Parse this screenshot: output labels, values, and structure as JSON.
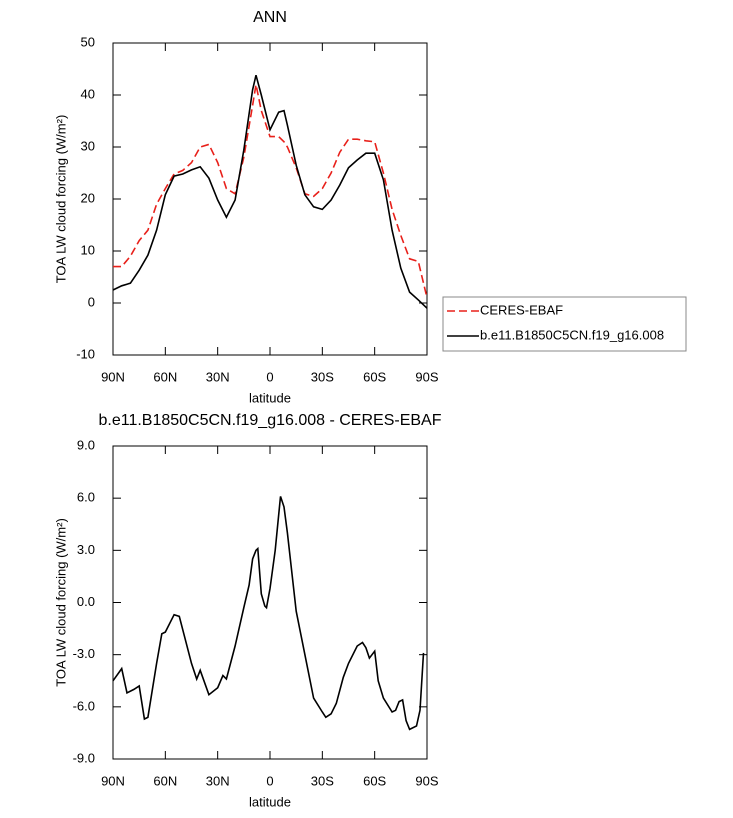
{
  "chart_data": [
    {
      "type": "line",
      "title": "ANN",
      "xlabel": "latitude",
      "ylabel": "TOA LW cloud forcing (W/m²)",
      "x": [
        90,
        85,
        80,
        75,
        70,
        65,
        60,
        55,
        50,
        45,
        40,
        35,
        30,
        25,
        20,
        15,
        10,
        8,
        5,
        0,
        -5,
        -8,
        -10,
        -15,
        -20,
        -25,
        -30,
        -35,
        -40,
        -45,
        -50,
        -55,
        -60,
        -65,
        -70,
        -75,
        -80,
        -85,
        -90
      ],
      "series": [
        {
          "name": "CERES-EBAF",
          "color": "#e8201a",
          "dashed": true,
          "values": [
            7,
            7,
            9,
            12,
            14,
            19,
            22,
            24.8,
            25.5,
            27,
            30,
            30.5,
            27,
            22,
            21,
            28,
            38,
            42,
            37,
            32,
            32,
            31,
            30,
            26,
            21,
            20.5,
            22,
            25,
            29,
            31.5,
            31.5,
            31.2,
            31,
            25,
            18,
            13,
            8.5,
            8,
            1
          ]
        },
        {
          "name": "b.e11.B1850C5CN.f19_g16.008",
          "color": "#000000",
          "dashed": false,
          "values": [
            2.5,
            3.3,
            3.8,
            6.3,
            9.2,
            14,
            20.8,
            24.4,
            24.8,
            25.6,
            26.2,
            24,
            19.8,
            16.5,
            19.8,
            29.4,
            41,
            43.8,
            40,
            33.3,
            36.7,
            37,
            34.2,
            26.5,
            20.8,
            18.5,
            18,
            19.8,
            22.7,
            26,
            27.5,
            28.8,
            28.8,
            23.7,
            14,
            6.7,
            2.1,
            0.6,
            -1
          ]
        }
      ],
      "xlim": [
        90,
        -90
      ],
      "xticks": [
        {
          "value": 90,
          "label": "90N"
        },
        {
          "value": 60,
          "label": "60N"
        },
        {
          "value": 30,
          "label": "30N"
        },
        0,
        {
          "value": -30,
          "label": "30S"
        },
        {
          "value": -60,
          "label": "60S"
        },
        {
          "value": -90,
          "label": "90S"
        }
      ],
      "ylim": [
        -10,
        50
      ],
      "yticks": [
        -10,
        0,
        10,
        20,
        30,
        40,
        50
      ],
      "legend": "right"
    },
    {
      "type": "line",
      "title": "b.e11.B1850C5CN.f19_g16.008 - CERES-EBAF",
      "xlabel": "latitude",
      "ylabel": "TOA LW cloud forcing (W/m²)",
      "x": [
        90,
        85,
        82,
        78,
        75,
        72,
        70,
        65,
        62,
        60,
        55,
        52,
        45,
        42,
        40,
        35,
        30,
        27,
        25,
        20,
        15,
        12,
        10,
        8,
        7,
        5,
        3,
        2,
        0,
        -3,
        -6,
        -8,
        -10,
        -15,
        -20,
        -25,
        -30,
        -32,
        -35,
        -38,
        -42,
        -45,
        -50,
        -53,
        -55,
        -57,
        -60,
        -62,
        -65,
        -70,
        -72,
        -74,
        -76,
        -78,
        -80,
        -84,
        -86,
        -88
      ],
      "values": [
        -4.5,
        -3.8,
        -5.2,
        -5,
        -4.8,
        -6.7,
        -6.6,
        -3.5,
        -1.8,
        -1.7,
        -0.7,
        -0.8,
        -3.5,
        -4.4,
        -3.9,
        -5.3,
        -4.9,
        -4.2,
        -4.4,
        -2.5,
        -0.3,
        1,
        2.5,
        3,
        3.1,
        0.5,
        -0.2,
        -0.3,
        0.8,
        3,
        6.1,
        5.5,
        4,
        -0.5,
        -3,
        -5.5,
        -6.3,
        -6.6,
        -6.4,
        -5.8,
        -4.3,
        -3.5,
        -2.5,
        -2.3,
        -2.6,
        -3.2,
        -2.8,
        -4.5,
        -5.5,
        -6.3,
        -6.2,
        -5.7,
        -5.6,
        -6.8,
        -7.3,
        -7.1,
        -6.2,
        -2.9
      ],
      "color": "#000000",
      "xlim": [
        90,
        -90
      ],
      "xticks": [
        {
          "value": 90,
          "label": "90N"
        },
        {
          "value": 60,
          "label": "60N"
        },
        {
          "value": 30,
          "label": "30N"
        },
        0,
        {
          "value": -30,
          "label": "30S"
        },
        {
          "value": -60,
          "label": "60S"
        },
        {
          "value": -90,
          "label": "90S"
        }
      ],
      "ylim": [
        -9,
        9
      ],
      "yticks": [
        {
          "value": -9,
          "label": "-9.0"
        },
        {
          "value": -6,
          "label": "-6.0"
        },
        {
          "value": -3,
          "label": "-3.0"
        },
        {
          "value": 0,
          "label": "0.0"
        },
        {
          "value": 3,
          "label": "3.0"
        },
        {
          "value": 6,
          "label": "6.0"
        },
        {
          "value": 9,
          "label": "9.0"
        }
      ]
    }
  ]
}
